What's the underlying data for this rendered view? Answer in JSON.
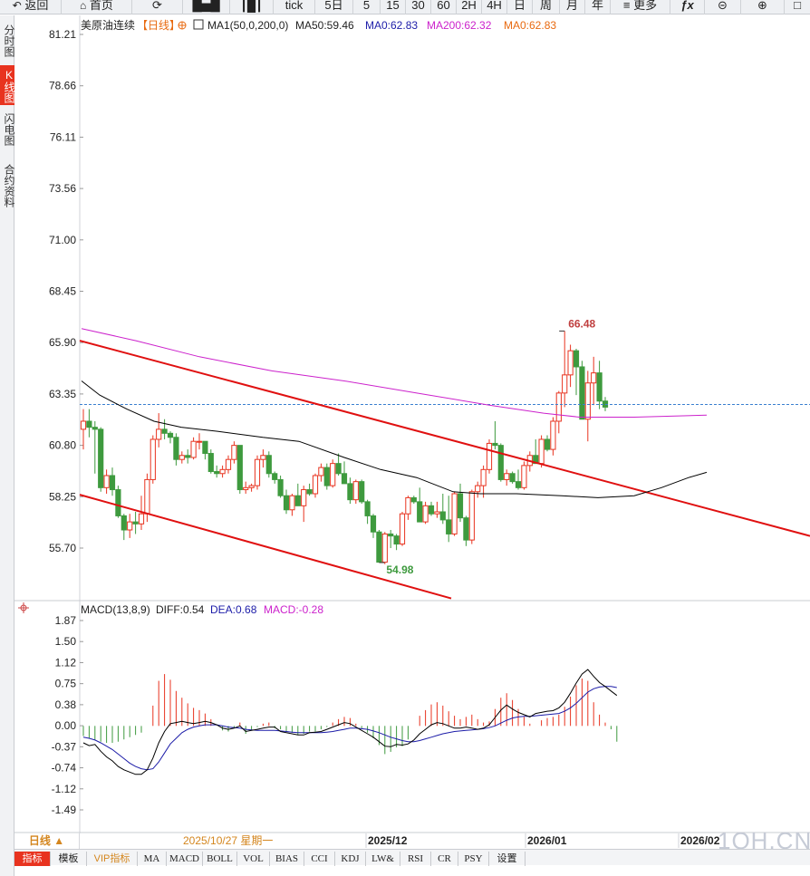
{
  "toolbar": {
    "back": "返回",
    "home": "首页",
    "tick": "tick",
    "periods": [
      "5日",
      "5",
      "15",
      "30",
      "60",
      "2H",
      "4H",
      "日",
      "周",
      "月",
      "年"
    ],
    "more": "更多"
  },
  "sidebar": {
    "items": [
      "分时图",
      "K线图",
      "闪电图",
      "合约资料"
    ],
    "active_index": 1
  },
  "main_header": {
    "name": "美原油连续",
    "period": "【日线】",
    "ma_label": "MA1(50,0,200,0)",
    "ma50": "MA50:59.46",
    "ma0a": "MA0:62.83",
    "ma200": "MA200:62.32",
    "ma0b": "MA0:62.83"
  },
  "price_axis": [
    "81.21",
    "78.66",
    "76.11",
    "73.56",
    "71.00",
    "68.45",
    "65.90",
    "63.35",
    "60.80",
    "58.25",
    "55.70"
  ],
  "annotations": {
    "high_label": "66.48",
    "low_label": "54.98"
  },
  "macd_header": {
    "label": "MACD(13,8,9)",
    "diff": "DIFF:0.54",
    "dea": "DEA:0.68",
    "macd": "MACD:-0.28"
  },
  "macd_axis": [
    "1.87",
    "1.50",
    "1.12",
    "0.75",
    "0.38",
    "0.00",
    "-0.37",
    "-0.74",
    "-1.12",
    "-1.49"
  ],
  "date_axis": {
    "crosshair_date": "2025/10/27 星期一",
    "d1": "2025/12",
    "d2": "2026/01",
    "d3": "2026/02"
  },
  "range_button": "日线 ▲",
  "bottom_tabs": [
    "指标",
    "模板",
    "VIP指标",
    "MA",
    "MACD",
    "BOLL",
    "VOL",
    "BIAS",
    "CCI",
    "KDJ",
    "LW&",
    "RSI",
    "CR",
    "PSY",
    "设置"
  ],
  "watermark": "1QH.CN",
  "colors": {
    "up": "#e8331f",
    "down": "#3e9a3e",
    "ma50": "#000000",
    "ma200": "#cc22cc",
    "ma0": "#1c1ca8",
    "trendline": "#e01010",
    "dea": "#1c1ca8",
    "label_orange": "#e86a10"
  },
  "chart_data": {
    "type": "candlestick",
    "ohlc": [
      [
        61.6,
        62.6,
        60.6,
        62.0
      ],
      [
        62.0,
        62.6,
        61.2,
        61.7
      ],
      [
        61.7,
        62.0,
        59.4,
        61.6
      ],
      [
        61.6,
        61.7,
        58.5,
        58.7
      ],
      [
        58.7,
        59.6,
        58.4,
        59.3
      ],
      [
        59.3,
        59.7,
        58.3,
        58.6
      ],
      [
        58.6,
        58.8,
        57.2,
        57.3
      ],
      [
        57.3,
        57.4,
        56.1,
        56.6
      ],
      [
        56.6,
        57.4,
        56.2,
        57.0
      ],
      [
        57.0,
        57.5,
        56.4,
        56.9
      ],
      [
        56.9,
        58.3,
        56.6,
        57.4
      ],
      [
        57.4,
        59.4,
        57.0,
        59.1
      ],
      [
        59.1,
        61.3,
        58.9,
        61.1
      ],
      [
        61.1,
        62.4,
        60.7,
        61.6
      ],
      [
        61.6,
        62.1,
        61.1,
        61.4
      ],
      [
        61.4,
        61.5,
        60.9,
        61.2
      ],
      [
        61.2,
        61.4,
        59.8,
        60.1
      ],
      [
        60.1,
        60.5,
        59.9,
        60.3
      ],
      [
        60.3,
        60.6,
        59.9,
        60.2
      ],
      [
        60.2,
        61.2,
        60.1,
        61.0
      ],
      [
        61.0,
        61.4,
        60.6,
        61.0
      ],
      [
        61.0,
        61.0,
        60.1,
        60.4
      ],
      [
        60.4,
        60.6,
        59.4,
        59.5
      ],
      [
        59.5,
        59.8,
        59.2,
        59.4
      ],
      [
        59.4,
        59.8,
        59.2,
        59.6
      ],
      [
        59.6,
        60.3,
        59.4,
        60.1
      ],
      [
        60.1,
        61.0,
        59.9,
        60.8
      ],
      [
        60.8,
        60.8,
        58.4,
        58.6
      ],
      [
        58.6,
        59.0,
        58.4,
        58.7
      ],
      [
        58.7,
        58.9,
        58.5,
        58.8
      ],
      [
        58.8,
        60.3,
        58.6,
        60.1
      ],
      [
        60.1,
        60.6,
        59.7,
        60.3
      ],
      [
        60.3,
        60.5,
        59.2,
        59.4
      ],
      [
        59.4,
        59.5,
        58.9,
        59.1
      ],
      [
        59.1,
        59.3,
        58.2,
        58.3
      ],
      [
        58.3,
        58.6,
        57.4,
        57.6
      ],
      [
        57.6,
        58.4,
        57.3,
        58.3
      ],
      [
        58.3,
        58.9,
        57.8,
        57.8
      ],
      [
        57.8,
        58.8,
        57.0,
        58.6
      ],
      [
        58.6,
        58.9,
        58.3,
        58.4
      ],
      [
        58.4,
        59.4,
        58.2,
        59.3
      ],
      [
        59.3,
        59.9,
        59.0,
        59.7
      ],
      [
        59.7,
        59.9,
        58.6,
        58.8
      ],
      [
        58.8,
        60.1,
        58.7,
        59.9
      ],
      [
        59.9,
        60.4,
        59.3,
        59.4
      ],
      [
        59.4,
        60.0,
        58.9,
        58.9
      ],
      [
        58.9,
        59.2,
        57.9,
        58.1
      ],
      [
        58.1,
        59.1,
        57.9,
        59.0
      ],
      [
        59.0,
        59.1,
        57.9,
        58.0
      ],
      [
        58.0,
        58.1,
        56.9,
        57.3
      ],
      [
        57.3,
        57.4,
        56.2,
        56.5
      ],
      [
        56.5,
        56.6,
        54.98,
        55.0
      ],
      [
        55.0,
        56.5,
        54.9,
        56.4
      ],
      [
        56.4,
        56.6,
        55.7,
        56.3
      ],
      [
        56.3,
        56.4,
        55.6,
        55.9
      ],
      [
        55.9,
        57.5,
        55.8,
        57.4
      ],
      [
        57.4,
        58.3,
        57.1,
        58.2
      ],
      [
        58.2,
        58.3,
        57.9,
        58.0
      ],
      [
        58.0,
        58.7,
        57.0,
        57.0
      ],
      [
        57.0,
        58.0,
        56.9,
        57.8
      ],
      [
        57.8,
        58.0,
        57.3,
        57.4
      ],
      [
        57.4,
        58.0,
        57.2,
        57.5
      ],
      [
        57.5,
        58.4,
        56.9,
        57.1
      ],
      [
        57.1,
        58.3,
        56.0,
        56.4
      ],
      [
        56.4,
        58.5,
        56.3,
        58.4
      ],
      [
        58.4,
        58.9,
        57.0,
        57.2
      ],
      [
        57.2,
        57.3,
        55.8,
        56.1
      ],
      [
        56.1,
        58.6,
        55.9,
        58.5
      ],
      [
        58.5,
        59.0,
        58.2,
        58.8
      ],
      [
        58.8,
        59.8,
        58.2,
        59.6
      ],
      [
        59.6,
        61.1,
        59.4,
        60.9
      ],
      [
        60.9,
        62.0,
        60.6,
        60.8
      ],
      [
        60.8,
        60.9,
        59.0,
        59.1
      ],
      [
        59.1,
        59.6,
        58.8,
        59.4
      ],
      [
        59.4,
        59.5,
        58.9,
        59.0
      ],
      [
        59.0,
        59.6,
        58.6,
        58.7
      ],
      [
        58.7,
        60.0,
        58.6,
        59.8
      ],
      [
        59.8,
        60.5,
        59.5,
        60.3
      ],
      [
        60.3,
        61.1,
        59.9,
        59.9
      ],
      [
        59.9,
        61.3,
        59.7,
        61.1
      ],
      [
        61.1,
        61.3,
        60.5,
        60.6
      ],
      [
        60.6,
        62.2,
        60.3,
        62.0
      ],
      [
        62.0,
        63.5,
        61.4,
        63.4
      ],
      [
        63.4,
        66.48,
        62.7,
        64.3
      ],
      [
        64.3,
        65.8,
        63.7,
        65.5
      ],
      [
        65.5,
        65.6,
        63.3,
        64.7
      ],
      [
        64.7,
        65.0,
        62.1,
        62.1
      ],
      [
        62.1,
        64.5,
        61.0,
        63.9
      ],
      [
        63.9,
        65.2,
        62.8,
        64.4
      ],
      [
        64.4,
        65.0,
        62.6,
        63.0
      ],
      [
        63.0,
        63.2,
        62.5,
        62.7
      ]
    ],
    "price_ylim": [
      54.5,
      81.21
    ],
    "macd_diff": [
      -0.3,
      -0.35,
      -0.33,
      -0.45,
      -0.55,
      -0.62,
      -0.72,
      -0.78,
      -0.82,
      -0.86,
      -0.86,
      -0.78,
      -0.57,
      -0.3,
      -0.1,
      0.04,
      0.06,
      0.08,
      0.06,
      0.04,
      0.06,
      0.08,
      0.06,
      0.02,
      -0.04,
      -0.06,
      -0.04,
      0.0,
      -0.1,
      -0.08,
      -0.06,
      -0.04,
      -0.02,
      -0.02,
      -0.1,
      -0.12,
      -0.14,
      -0.16,
      -0.16,
      -0.12,
      -0.11,
      -0.1,
      -0.06,
      -0.02,
      0.02,
      0.06,
      0.04,
      -0.02,
      -0.08,
      -0.14,
      -0.2,
      -0.28,
      -0.36,
      -0.37,
      -0.33,
      -0.34,
      -0.32,
      -0.25,
      -0.14,
      -0.06,
      0.02,
      0.06,
      0.04,
      0.0,
      -0.04,
      -0.04,
      -0.02,
      -0.04,
      -0.06,
      -0.04,
      0.02,
      0.15,
      0.28,
      0.37,
      0.3,
      0.24,
      0.2,
      0.16,
      0.22,
      0.24,
      0.26,
      0.27,
      0.32,
      0.42,
      0.58,
      0.76,
      0.92,
      1.0,
      0.88,
      0.77,
      0.7,
      0.62,
      0.54
    ],
    "macd_dea": [
      -0.2,
      -0.22,
      -0.25,
      -0.3,
      -0.36,
      -0.42,
      -0.5,
      -0.58,
      -0.66,
      -0.72,
      -0.76,
      -0.78,
      -0.76,
      -0.64,
      -0.48,
      -0.32,
      -0.22,
      -0.12,
      -0.06,
      -0.02,
      0.0,
      0.02,
      0.02,
      0.02,
      0.0,
      -0.02,
      -0.03,
      -0.04,
      -0.06,
      -0.07,
      -0.08,
      -0.08,
      -0.08,
      -0.08,
      -0.09,
      -0.1,
      -0.11,
      -0.12,
      -0.12,
      -0.12,
      -0.12,
      -0.12,
      -0.11,
      -0.1,
      -0.08,
      -0.06,
      -0.04,
      -0.04,
      -0.05,
      -0.06,
      -0.09,
      -0.12,
      -0.16,
      -0.2,
      -0.23,
      -0.26,
      -0.28,
      -0.28,
      -0.26,
      -0.23,
      -0.2,
      -0.17,
      -0.14,
      -0.12,
      -0.1,
      -0.09,
      -0.08,
      -0.07,
      -0.06,
      -0.05,
      -0.03,
      0.0,
      0.05,
      0.1,
      0.14,
      0.16,
      0.17,
      0.17,
      0.18,
      0.19,
      0.2,
      0.21,
      0.22,
      0.26,
      0.32,
      0.4,
      0.5,
      0.6,
      0.66,
      0.69,
      0.7,
      0.7,
      0.68
    ],
    "macd_hist": [
      -0.18,
      -0.22,
      -0.25,
      -0.28,
      -0.3,
      -0.3,
      -0.28,
      -0.24,
      -0.2,
      -0.16,
      -0.12,
      0.0,
      0.36,
      0.8,
      0.92,
      0.82,
      0.62,
      0.5,
      0.4,
      0.32,
      0.28,
      0.22,
      0.12,
      0.0,
      -0.08,
      -0.1,
      -0.04,
      0.06,
      -0.14,
      -0.08,
      -0.02,
      0.04,
      0.06,
      -0.04,
      -0.06,
      -0.1,
      -0.12,
      -0.16,
      -0.14,
      -0.1,
      -0.1,
      -0.06,
      -0.02,
      0.06,
      0.12,
      0.16,
      0.14,
      0.04,
      -0.04,
      -0.12,
      -0.22,
      -0.34,
      -0.5,
      -0.46,
      -0.38,
      -0.36,
      -0.24,
      0.0,
      0.18,
      0.28,
      0.38,
      0.42,
      0.36,
      0.26,
      0.18,
      0.12,
      0.16,
      0.2,
      0.12,
      0.06,
      0.08,
      0.3,
      0.5,
      0.58,
      0.46,
      0.3,
      0.16,
      0.04,
      0.0,
      0.1,
      0.14,
      0.16,
      0.2,
      0.34,
      0.52,
      0.72,
      0.84,
      0.8,
      0.42,
      0.2,
      0.06,
      -0.06,
      -0.28
    ],
    "macd_ylim": [
      -1.6,
      1.87
    ]
  }
}
